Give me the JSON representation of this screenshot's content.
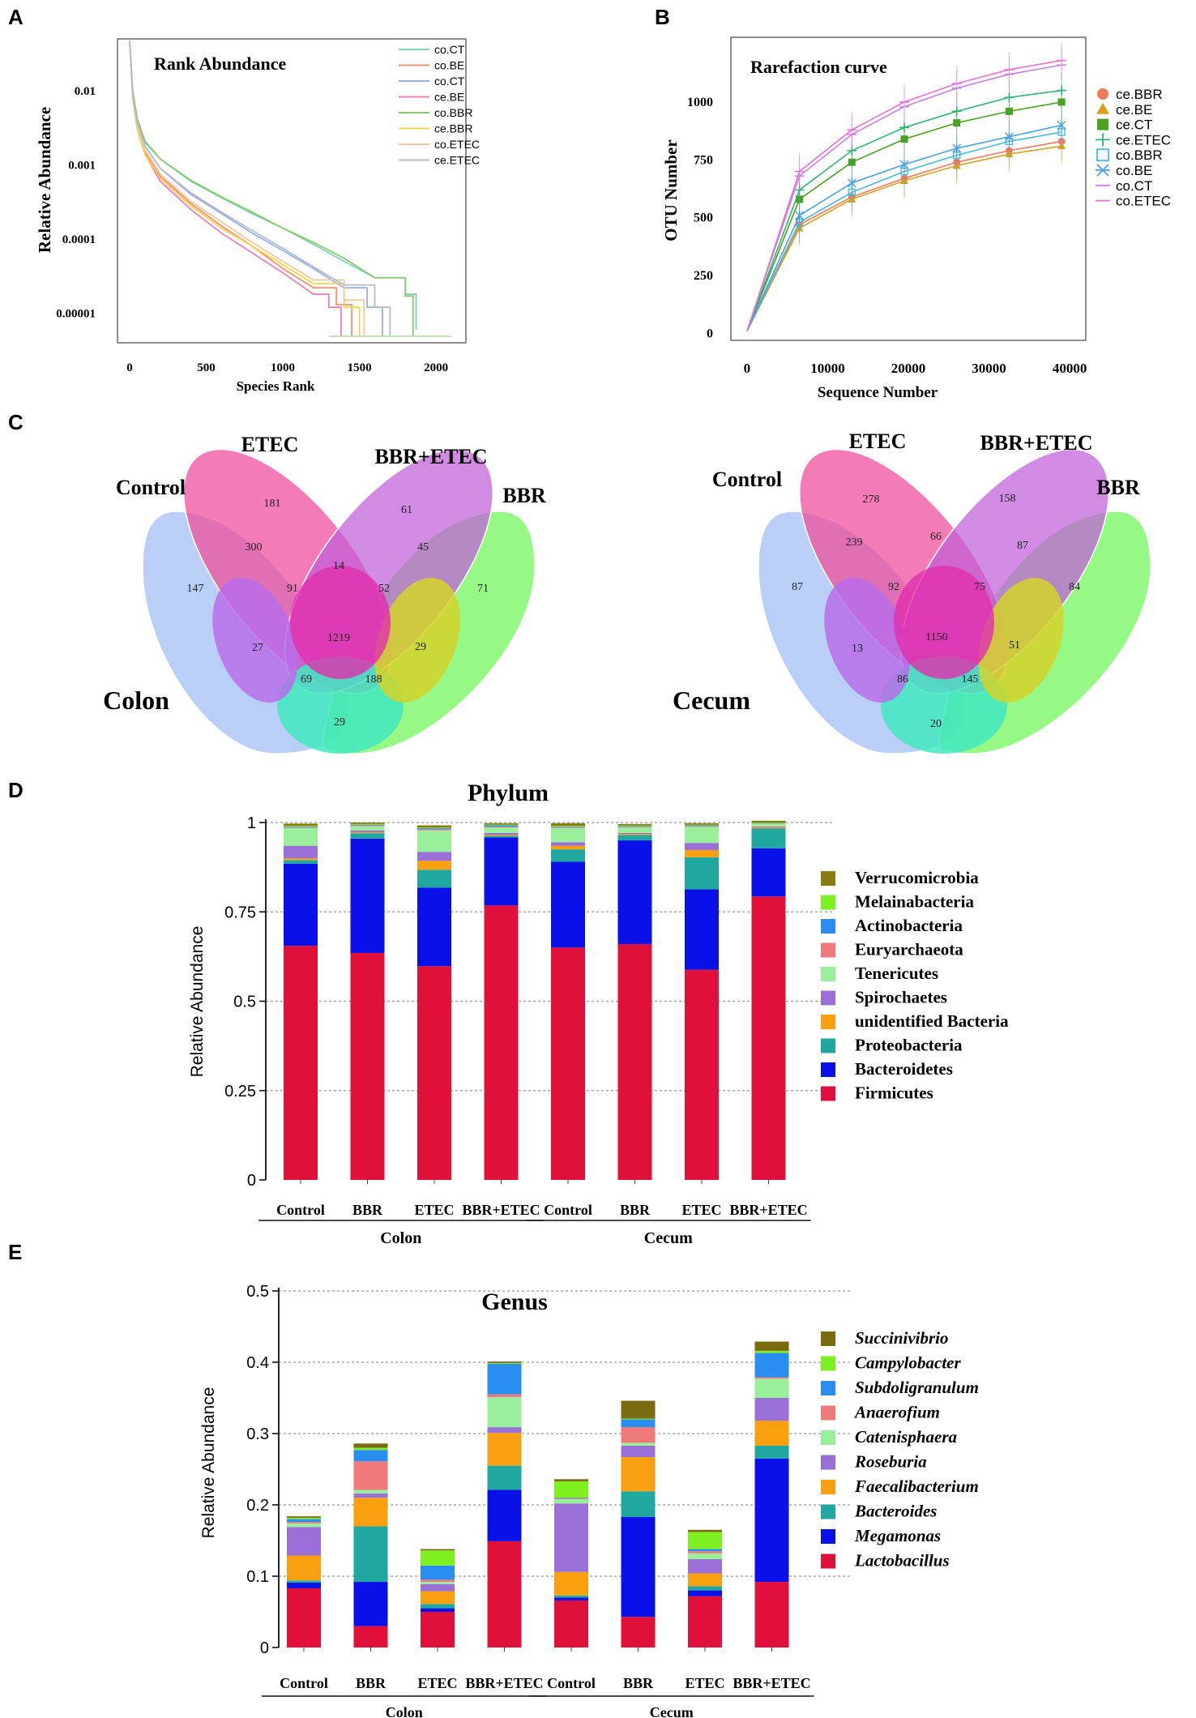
{
  "colors": {
    "legend_A": [
      "#7fd3c0",
      "#f29070",
      "#95b0e8",
      "#ef7fb9",
      "#8cc870",
      "#f2d64c",
      "#f2c89c",
      "#b8b8c8"
    ],
    "legend_B": [
      "#f07a5a",
      "#d8a020",
      "#4aa020",
      "#2ab870",
      "#4ab8e0",
      "#4aa0e8",
      "#c880e8",
      "#e870d8"
    ],
    "phylum": [
      "#8a7a10",
      "#7ef020",
      "#2a8ef0",
      "#f07a7a",
      "#9af09a",
      "#9a70d8",
      "#f8a010",
      "#20a8a0",
      "#0a10e8",
      "#e0103a"
    ],
    "genus": [
      "#7a6a10",
      "#7ef020",
      "#2a8ef0",
      "#f07a7a",
      "#9af09a",
      "#9a70d8",
      "#f8a010",
      "#20a8a0",
      "#0a10e8",
      "#e0103a"
    ]
  },
  "chart_data": [
    {
      "panel": "A",
      "type": "line",
      "title": "Rank Abundance",
      "xlabel": "Species Rank",
      "ylabel": "Relative Abundance",
      "xticks": [
        "0",
        "500",
        "1000",
        "1500",
        "2000"
      ],
      "yticks": [
        "0.01",
        "0.001",
        "0.0001",
        "0.00001"
      ],
      "x_range": [
        0,
        2100
      ],
      "y_range_log10": [
        -5.4,
        -1.3
      ],
      "series": [
        {
          "name": "co.CT",
          "x": [
            0,
            20,
            50,
            100,
            200,
            400,
            600,
            800,
            1000,
            1200,
            1400,
            1600,
            1800,
            1870
          ],
          "y": [
            0.05,
            0.01,
            0.004,
            0.002,
            0.0012,
            0.0006,
            0.00036,
            0.00022,
            0.00014,
            8.5e-05,
            5e-05,
            3e-05,
            1.8e-05,
            6e-06
          ]
        },
        {
          "name": "co.BE",
          "x": [
            0,
            20,
            50,
            100,
            200,
            400,
            600,
            800,
            1000,
            1200,
            1350,
            1450
          ],
          "y": [
            0.05,
            0.009,
            0.0032,
            0.0015,
            0.0007,
            0.0003,
            0.00015,
            8e-05,
            4e-05,
            2.2e-05,
            1.3e-05,
            4e-06
          ]
        },
        {
          "name": "co.CT",
          "x": [
            0,
            20,
            50,
            100,
            200,
            400,
            600,
            800,
            1000,
            1200,
            1400,
            1550,
            1650
          ],
          "y": [
            0.05,
            0.009,
            0.0035,
            0.0018,
            0.0009,
            0.0004,
            0.00022,
            0.00012,
            7e-05,
            4e-05,
            2.2e-05,
            1.2e-05,
            4e-06
          ]
        },
        {
          "name": "ce.BE",
          "x": [
            0,
            20,
            50,
            100,
            200,
            400,
            600,
            800,
            1000,
            1200,
            1300,
            1380
          ],
          "y": [
            0.05,
            0.008,
            0.003,
            0.0014,
            0.0006,
            0.00025,
            0.00012,
            6.5e-05,
            3.5e-05,
            1.8e-05,
            1.2e-05,
            4e-06
          ]
        },
        {
          "name": "co.BBR",
          "x": [
            0,
            20,
            50,
            100,
            200,
            400,
            600,
            800,
            1000,
            1200,
            1400,
            1600,
            1800,
            1850
          ],
          "y": [
            0.05,
            0.01,
            0.0042,
            0.0021,
            0.0012,
            0.00062,
            0.00037,
            0.00023,
            0.00014,
            9e-05,
            5.5e-05,
            3e-05,
            1.7e-05,
            5e-06
          ]
        },
        {
          "name": "ce.BBR",
          "x": [
            0,
            20,
            50,
            100,
            200,
            400,
            600,
            800,
            1000,
            1200,
            1400,
            1500
          ],
          "y": [
            0.05,
            0.008,
            0.003,
            0.0014,
            0.00065,
            0.00028,
            0.00014,
            8e-05,
            4.5e-05,
            2.5e-05,
            1.2e-05,
            4e-06
          ]
        },
        {
          "name": "co.ETEC",
          "x": [
            0,
            20,
            50,
            100,
            200,
            400,
            600,
            800,
            1000,
            1200,
            1400,
            1530
          ],
          "y": [
            0.05,
            0.009,
            0.0033,
            0.0016,
            0.00075,
            0.00032,
            0.00017,
            9e-05,
            5e-05,
            2.8e-05,
            1.5e-05,
            4e-06
          ]
        },
        {
          "name": "ce.ETEC",
          "x": [
            0,
            20,
            50,
            100,
            200,
            400,
            600,
            800,
            1000,
            1200,
            1400,
            1600,
            1700
          ],
          "y": [
            0.05,
            0.009,
            0.0036,
            0.0018,
            0.0009,
            0.00042,
            0.00023,
            0.00013,
            7.5e-05,
            4.2e-05,
            2.4e-05,
            1.2e-05,
            5e-06
          ]
        }
      ]
    },
    {
      "panel": "B",
      "type": "line",
      "title": "Rarefaction curve",
      "xlabel": "Sequence Number",
      "ylabel": "OTU Number",
      "xticks": [
        "0",
        "10000",
        "20000",
        "30000",
        "40000"
      ],
      "yticks": [
        "0",
        "250",
        "500",
        "750",
        "1000"
      ],
      "x_range": [
        -2000,
        42000
      ],
      "y_range": [
        -30,
        1280
      ],
      "x": [
        0,
        6500,
        13000,
        19500,
        26000,
        32500,
        39000
      ],
      "series": [
        {
          "name": "ce.BBR",
          "values": [
            10,
            470,
            590,
            670,
            740,
            790,
            830
          ]
        },
        {
          "name": "ce.BE",
          "values": [
            10,
            455,
            580,
            660,
            725,
            775,
            810
          ]
        },
        {
          "name": "ce.CT",
          "values": [
            10,
            580,
            740,
            840,
            910,
            960,
            1000
          ]
        },
        {
          "name": "ce.ETEC",
          "values": [
            10,
            620,
            790,
            890,
            960,
            1020,
            1050
          ]
        },
        {
          "name": "co.BBR",
          "values": [
            10,
            480,
            610,
            700,
            770,
            830,
            870
          ]
        },
        {
          "name": "co.BE",
          "values": [
            10,
            510,
            650,
            730,
            800,
            850,
            900
          ]
        },
        {
          "name": "co.CT",
          "values": [
            10,
            680,
            860,
            980,
            1060,
            1120,
            1160
          ]
        },
        {
          "name": "co.ETEC",
          "values": [
            10,
            700,
            880,
            1000,
            1080,
            1140,
            1180
          ]
        }
      ]
    },
    {
      "panel": "D",
      "type": "bar",
      "stacked": true,
      "title": "Phylum",
      "ylabel": "Relative Abundance",
      "yticks": [
        "0",
        "0.25",
        "0.5",
        "0.75",
        "1"
      ],
      "ylim": [
        0,
        1
      ],
      "categories": [
        "Control",
        "BBR",
        "ETEC",
        "BBR+ETEC",
        "Control",
        "BBR",
        "ETEC",
        "BBR+ETEC"
      ],
      "groups": [
        {
          "name": "Colon",
          "span": [
            0,
            3
          ]
        },
        {
          "name": "Cecum",
          "span": [
            4,
            7
          ]
        }
      ],
      "series": [
        {
          "name": "Firmicutes",
          "values": [
            0.655,
            0.635,
            0.598,
            0.768,
            0.65,
            0.66,
            0.588,
            0.793
          ]
        },
        {
          "name": "Bacteroidetes",
          "values": [
            0.23,
            0.32,
            0.22,
            0.19,
            0.24,
            0.29,
            0.225,
            0.135
          ]
        },
        {
          "name": "Proteobacteria",
          "values": [
            0.01,
            0.015,
            0.05,
            0.005,
            0.035,
            0.015,
            0.09,
            0.055
          ]
        },
        {
          "name": "unidentified Bacteria",
          "values": [
            0.005,
            0.003,
            0.025,
            0.003,
            0.01,
            0.003,
            0.02,
            0.003
          ]
        },
        {
          "name": "Spirochaetes",
          "values": [
            0.035,
            0.005,
            0.025,
            0.005,
            0.01,
            0.003,
            0.02,
            0.003
          ]
        },
        {
          "name": "Tenericutes",
          "values": [
            0.05,
            0.012,
            0.06,
            0.015,
            0.04,
            0.015,
            0.045,
            0.008
          ]
        },
        {
          "name": "Euryarchaeota",
          "values": [
            0.002,
            0.002,
            0.003,
            0.002,
            0.002,
            0.002,
            0.002,
            0.001
          ]
        },
        {
          "name": "Actinobacteria",
          "values": [
            0.002,
            0.002,
            0.003,
            0.004,
            0.002,
            0.002,
            0.002,
            0.001
          ]
        },
        {
          "name": "Melainabacteria",
          "values": [
            0.002,
            0.002,
            0.002,
            0.002,
            0.002,
            0.002,
            0.002,
            0.001
          ]
        },
        {
          "name": "Verrucomicrobia",
          "values": [
            0.006,
            0.004,
            0.006,
            0.004,
            0.007,
            0.004,
            0.004,
            0.005
          ]
        }
      ]
    },
    {
      "panel": "E",
      "type": "bar",
      "stacked": true,
      "title": "Genus",
      "ylabel": "Relative Abundance",
      "yticks": [
        "0",
        "0.1",
        "0.2",
        "0.3",
        "0.4",
        "0.5"
      ],
      "ylim": [
        0,
        0.5
      ],
      "categories": [
        "Control",
        "BBR",
        "ETEC",
        "BBR+ETEC",
        "Control",
        "BBR",
        "ETEC",
        "BBR+ETEC"
      ],
      "groups": [
        {
          "name": "Colon",
          "span": [
            0,
            3
          ]
        },
        {
          "name": "Cecum",
          "span": [
            4,
            7
          ]
        }
      ],
      "series": [
        {
          "name": "Lactobacillus",
          "values": [
            0.083,
            0.03,
            0.05,
            0.149,
            0.066,
            0.043,
            0.072,
            0.092
          ]
        },
        {
          "name": "Megamonas",
          "values": [
            0.008,
            0.062,
            0.005,
            0.072,
            0.004,
            0.14,
            0.008,
            0.173
          ]
        },
        {
          "name": "Bacteroides",
          "values": [
            0.003,
            0.078,
            0.006,
            0.034,
            0.003,
            0.036,
            0.006,
            0.018
          ]
        },
        {
          "name": "Faecalibacterium",
          "values": [
            0.035,
            0.04,
            0.018,
            0.046,
            0.033,
            0.048,
            0.018,
            0.035
          ]
        },
        {
          "name": "Roseburia",
          "values": [
            0.04,
            0.006,
            0.01,
            0.008,
            0.096,
            0.016,
            0.02,
            0.032
          ]
        },
        {
          "name": "Catenisphaera",
          "values": [
            0.005,
            0.005,
            0.003,
            0.042,
            0.006,
            0.004,
            0.008,
            0.027
          ]
        },
        {
          "name": "Anaerofium",
          "values": [
            0.002,
            0.04,
            0.003,
            0.004,
            0.001,
            0.022,
            0.003,
            0.002
          ]
        },
        {
          "name": "Subdoligranulum",
          "values": [
            0.004,
            0.016,
            0.02,
            0.043,
            0.001,
            0.011,
            0.003,
            0.034
          ]
        },
        {
          "name": "Campylobacter",
          "values": [
            0.002,
            0.003,
            0.021,
            0.001,
            0.023,
            0.001,
            0.024,
            0.003
          ]
        },
        {
          "name": "Succinivibrio",
          "values": [
            0.002,
            0.006,
            0.002,
            0.002,
            0.003,
            0.025,
            0.003,
            0.013
          ]
        }
      ]
    }
  ],
  "venn": {
    "labels": {
      "etec": "ETEC",
      "bbr_etec": "BBR+ETEC",
      "control": "Control",
      "bbr": "BBR"
    },
    "colon": {
      "title": "Colon",
      "counts": {
        "etec_only": "181",
        "control_etec": "300",
        "bbrEtec_only": "61",
        "etec_bbrEtec": "14",
        "bbrEtec_bbr": "45",
        "control_only": "147",
        "bbr_only": "71",
        "c_e_be": "91",
        "e_be_b": "52",
        "all": "1219",
        "c_e_b": "27",
        "c_be_b": "29",
        "c_be": "69",
        "e_b": "188",
        "c_b": "29"
      }
    },
    "cecum": {
      "title": "Cecum",
      "counts": {
        "etec_only": "278",
        "control_etec": "239",
        "bbrEtec_only": "158",
        "etec_bbrEtec": "66",
        "bbrEtec_bbr": "87",
        "control_only": "87",
        "bbr_only": "84",
        "c_e_be": "92",
        "e_be_b": "75",
        "all": "1150",
        "c_e_b": "13",
        "c_be_b": "51",
        "c_be": "86",
        "e_b": "145",
        "c_b": "20"
      }
    }
  },
  "panels": {
    "a": "A",
    "b": "B",
    "c": "C",
    "d": "D",
    "e": "E"
  }
}
